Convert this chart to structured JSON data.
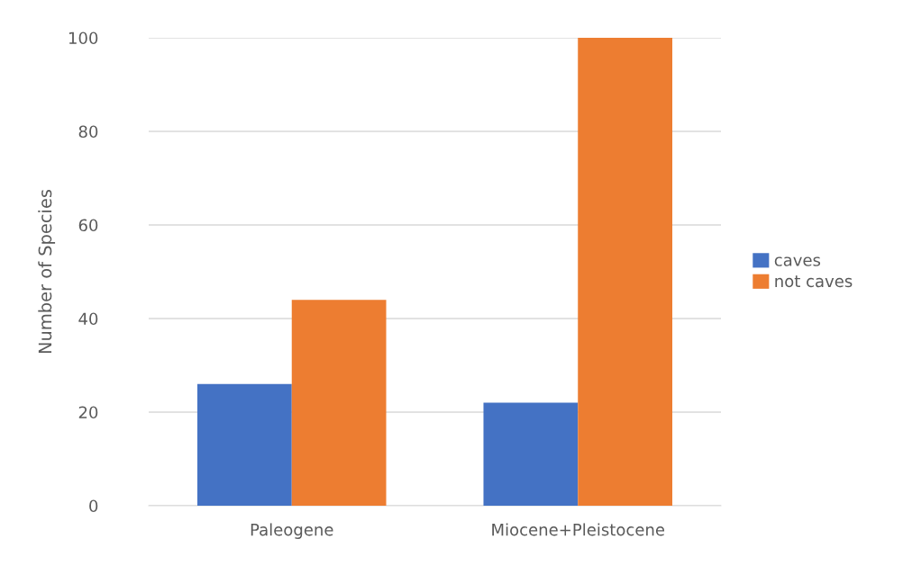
{
  "chart_data": {
    "type": "bar",
    "ylabel": "Number of Species",
    "categories": [
      "Paleogene",
      "Miocene+Pleistocene"
    ],
    "series": [
      {
        "name": "caves",
        "color": "#4472c4",
        "values": [
          26,
          22
        ]
      },
      {
        "name": "not caves",
        "color": "#ed7d31",
        "values": [
          44,
          100
        ]
      }
    ],
    "ylim": [
      0,
      100
    ],
    "yticks": [
      0,
      20,
      40,
      60,
      80,
      100
    ],
    "grid": "y",
    "legend": "right"
  }
}
